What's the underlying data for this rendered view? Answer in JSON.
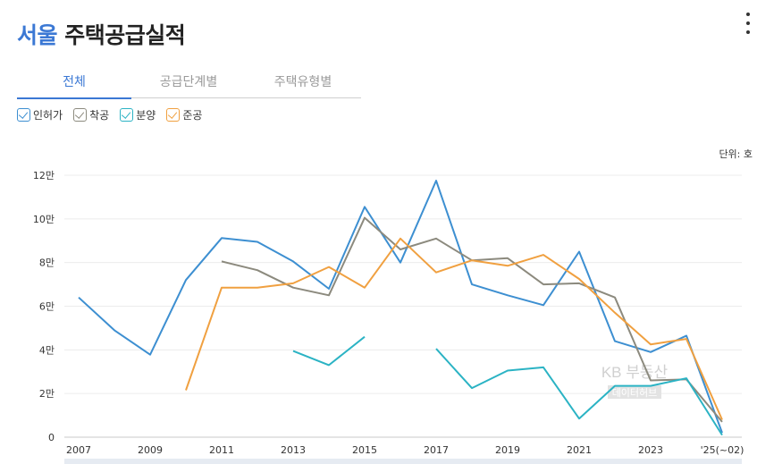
{
  "header": {
    "city": "서울",
    "title": "주택공급실적"
  },
  "tabs": [
    {
      "label": "전체",
      "active": true
    },
    {
      "label": "공급단계별",
      "active": false
    },
    {
      "label": "주택유형별",
      "active": false
    }
  ],
  "unit_label": "단위: 호",
  "watermark": {
    "line1": "KB 부동산",
    "line2": "데이터허브"
  },
  "colors": {
    "accent": "#3b78d4"
  },
  "chart_data": {
    "type": "line",
    "x": [
      "2007",
      "2008",
      "2009",
      "2010",
      "2011",
      "2012",
      "2013",
      "2014",
      "2015",
      "2016",
      "2017",
      "2018",
      "2019",
      "2020",
      "2021",
      "2022",
      "2023",
      "2024",
      "'25(~02)"
    ],
    "x_tick_labels": [
      "2007",
      "2009",
      "2011",
      "2013",
      "2015",
      "2017",
      "2019",
      "2021",
      "2023",
      "'25(~02)"
    ],
    "y_tick_labels": [
      "0",
      "2만",
      "4만",
      "6만",
      "8만",
      "10만",
      "12만"
    ],
    "ylim": [
      0,
      120000
    ],
    "grid": true,
    "series": [
      {
        "name": "인허가",
        "color": "#3d8fd1",
        "values": [
          64000,
          49000,
          37800,
          72000,
          91200,
          89500,
          80500,
          68000,
          105500,
          80000,
          117500,
          70000,
          65000,
          60500,
          85000,
          44000,
          39000,
          46500,
          2000
        ]
      },
      {
        "name": "착공",
        "color": "#8c8a7e",
        "values": [
          null,
          null,
          null,
          null,
          80500,
          76500,
          68500,
          65000,
          100500,
          86000,
          91000,
          81000,
          82000,
          70000,
          70500,
          64000,
          26000,
          26500,
          7000
        ]
      },
      {
        "name": "분양",
        "color": "#2bb3c4",
        "values": [
          null,
          null,
          null,
          null,
          null,
          null,
          39500,
          33000,
          46000,
          null,
          40500,
          22500,
          30500,
          32000,
          8500,
          23500,
          23500,
          27000,
          1000
        ]
      },
      {
        "name": "준공",
        "color": "#f0a040",
        "values": [
          null,
          null,
          null,
          21500,
          68500,
          68500,
          70500,
          78000,
          68500,
          91000,
          75500,
          81000,
          78500,
          83500,
          72500,
          57000,
          42500,
          45000,
          8000
        ]
      }
    ]
  }
}
